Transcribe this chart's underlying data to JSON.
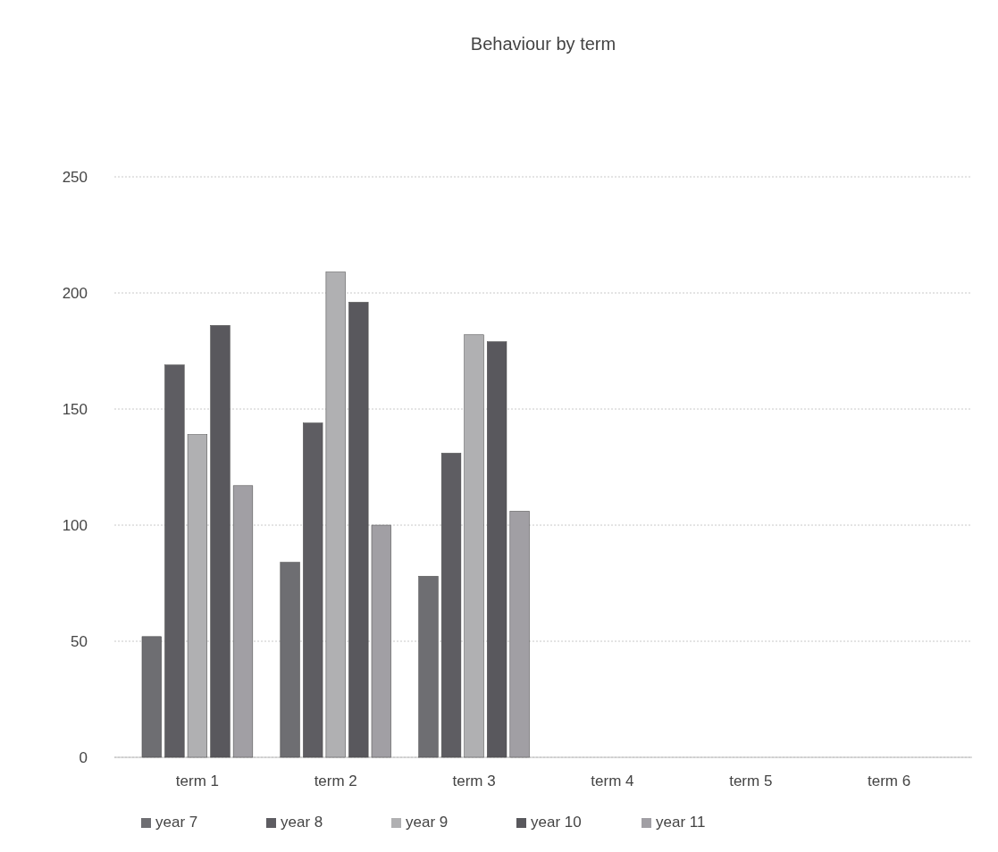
{
  "chart_data": {
    "type": "bar",
    "title": "Behaviour by term",
    "categories": [
      "term 1",
      "term 2",
      "term 3",
      "term 4",
      "term 5",
      "term 6"
    ],
    "series": [
      {
        "name": "year 7",
        "color": "#6e6e72",
        "values": [
          52,
          84,
          78,
          null,
          null,
          null
        ]
      },
      {
        "name": "year 8",
        "color": "#5e5d62",
        "values": [
          169,
          144,
          131,
          null,
          null,
          null
        ]
      },
      {
        "name": "year 9",
        "color": "#b0b0b2",
        "values": [
          139,
          209,
          182,
          null,
          null,
          null
        ]
      },
      {
        "name": "year 10",
        "color": "#59585d",
        "values": [
          186,
          196,
          179,
          null,
          null,
          null
        ]
      },
      {
        "name": "year 11",
        "color": "#a19fa4",
        "values": [
          117,
          100,
          106,
          null,
          null,
          null
        ]
      }
    ],
    "ylim": [
      0,
      250
    ],
    "yticks": [
      0,
      50,
      100,
      150,
      200,
      250
    ],
    "grid": "y",
    "legend": "bottom"
  }
}
